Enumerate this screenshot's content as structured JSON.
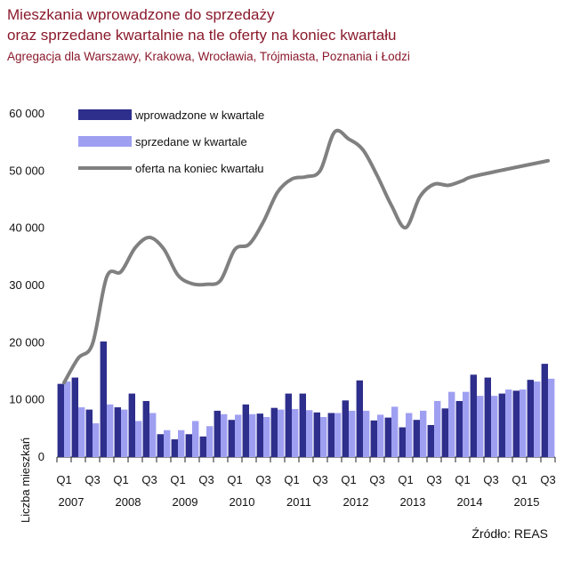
{
  "title_line1": "Mieszkania wprowadzone do sprzedaży",
  "title_line2": "oraz sprzedane kwartalnie na tle oferty na koniec kwartału",
  "subtitle": "Agregacja dla  Warszawy, Krakowa, Wrocławia, Trójmiasta, Poznania i Łodzi",
  "source": "Źródło: REAS",
  "colors": {
    "introduced": "#2e2e8c",
    "sold": "#9f9ff2",
    "offer": "#808080",
    "title": "#8a1a2c"
  },
  "chart_data": {
    "type": "bar",
    "ylabel": "Liczba mieszkań",
    "ylim": [
      0,
      60000
    ],
    "yticks": [
      "0",
      "10 000",
      "20 000",
      "30 000",
      "40 000",
      "50 000",
      "60 000"
    ],
    "ytick_values": [
      0,
      10000,
      20000,
      30000,
      40000,
      50000,
      60000
    ],
    "categories": [
      "Q1 2007",
      "Q2 2007",
      "Q3 2007",
      "Q4 2007",
      "Q1 2008",
      "Q2 2008",
      "Q3 2008",
      "Q4 2008",
      "Q1 2009",
      "Q2 2009",
      "Q3 2009",
      "Q4 2009",
      "Q1 2010",
      "Q2 2010",
      "Q3 2010",
      "Q4 2010",
      "Q1 2011",
      "Q2 2011",
      "Q3 2011",
      "Q4 2011",
      "Q1 2012",
      "Q2 2012",
      "Q3 2012",
      "Q4 2012",
      "Q1 2013",
      "Q2 2013",
      "Q3 2013",
      "Q4 2013",
      "Q1 2014",
      "Q2 2014",
      "Q3 2014",
      "Q4 2014",
      "Q1 2015",
      "Q2 2015",
      "Q3 2015"
    ],
    "quarter_labels": [
      "Q1",
      "",
      "Q3",
      "",
      "Q1",
      "",
      "Q3",
      "",
      "Q1",
      "",
      "Q3",
      "",
      "Q1",
      "",
      "Q3",
      "",
      "Q1",
      "",
      "Q3",
      "",
      "Q1",
      "",
      "Q3",
      "",
      "Q1",
      "",
      "Q3",
      "",
      "Q1",
      "",
      "Q3",
      "",
      "Q1",
      "",
      "Q3"
    ],
    "years": [
      "2007",
      "2008",
      "2009",
      "2010",
      "2011",
      "2012",
      "2013",
      "2014",
      "2015"
    ],
    "series": [
      {
        "name": "wprowadzone w kwartale",
        "type": "bar",
        "values": [
          12800,
          13900,
          8300,
          20200,
          8700,
          11100,
          9800,
          4000,
          3100,
          4000,
          3600,
          8100,
          6500,
          9200,
          7600,
          8600,
          11100,
          11100,
          7800,
          7700,
          9900,
          13400,
          6400,
          6900,
          5200,
          6500,
          5600,
          8500,
          9800,
          14400,
          13900,
          11100,
          11600,
          13500,
          16300
        ]
      },
      {
        "name": "sprzedane w kwartale",
        "type": "bar",
        "values": [
          13200,
          8700,
          5900,
          9200,
          8300,
          6300,
          7700,
          4700,
          4700,
          6300,
          5400,
          7500,
          7400,
          7500,
          7000,
          8300,
          8400,
          8200,
          7000,
          7700,
          8100,
          8100,
          7400,
          8800,
          7700,
          8100,
          9800,
          11400,
          11400,
          10700,
          10700,
          11800,
          11800,
          13200,
          13700
        ]
      },
      {
        "name": "oferta na koniec kwartału",
        "type": "line",
        "values": [
          13000,
          17300,
          19800,
          31500,
          32400,
          36600,
          38400,
          36400,
          31800,
          30300,
          30200,
          30900,
          36300,
          37200,
          41100,
          46300,
          48600,
          49000,
          50100,
          56800,
          55600,
          53700,
          49200,
          44000,
          40100,
          45500,
          47700,
          47500,
          48300,
          49200,
          51800
        ],
        "x": [
          "Q1 2007",
          "Q2 2007",
          "Q3 2007",
          "Q4 2007",
          "Q1 2008",
          "Q2 2008",
          "Q3 2008",
          "Q4 2008",
          "Q1 2009",
          "Q2 2009",
          "Q3 2009",
          "Q4 2009",
          "Q1 2010",
          "Q2 2010",
          "Q3 2010",
          "Q4 2010",
          "Q1 2011",
          "Q2 2011",
          "Q3 2011",
          "Q4 2011",
          "Q1 2012",
          "Q2 2012",
          "Q3 2012",
          "Q4 2012",
          "Q1 2013",
          "Q2 2013",
          "Q3 2013",
          "Q4 2013",
          "Q1 2014",
          "Q2 2014",
          "Q3 2015"
        ]
      }
    ],
    "legend": "top-left",
    "grid": false
  }
}
